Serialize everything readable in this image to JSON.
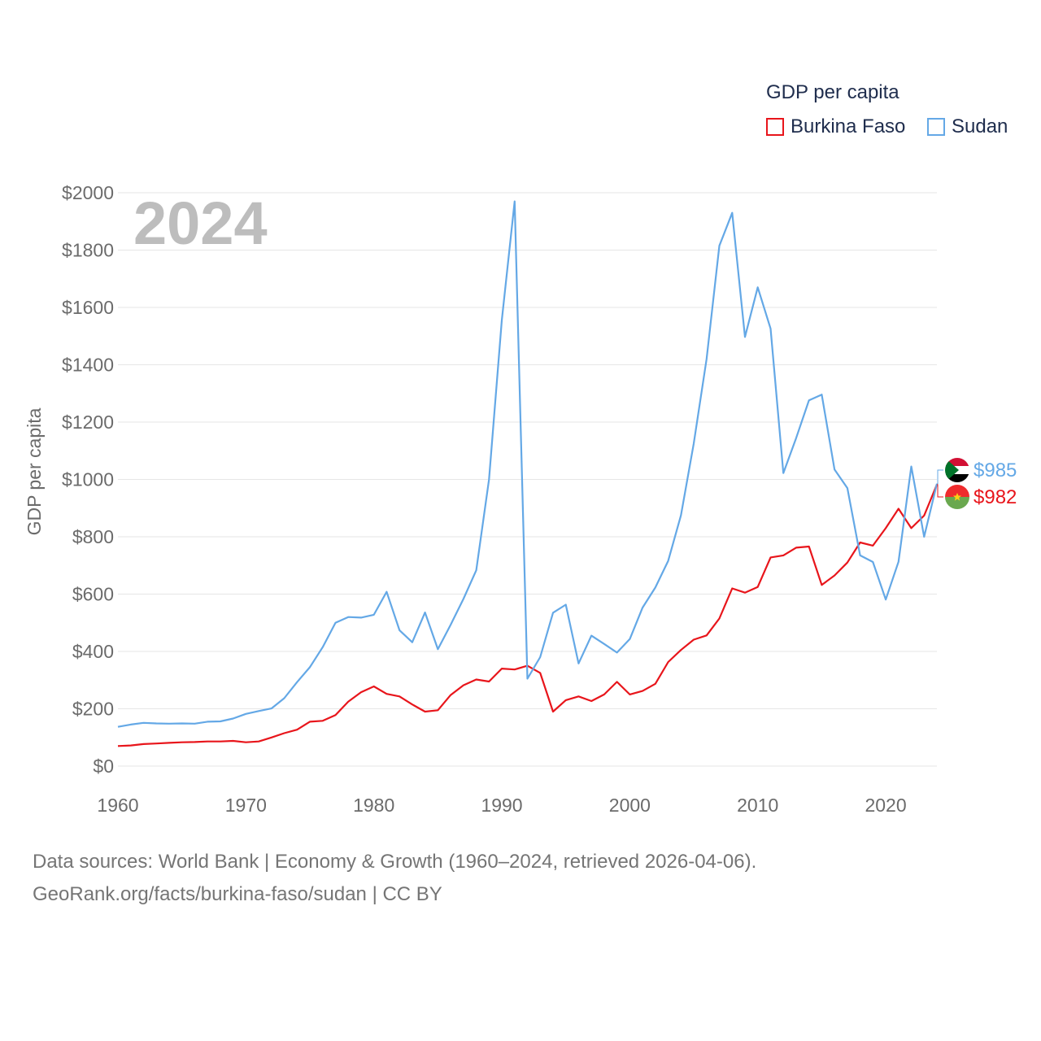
{
  "legend": {
    "title": "GDP per capita",
    "items": [
      {
        "label": "Burkina Faso",
        "color": "#e8151b"
      },
      {
        "label": "Sudan",
        "color": "#64a8e6"
      }
    ]
  },
  "year_label": "2024",
  "footer": {
    "line1": "Data sources: World Bank | Economy & Growth (1960–2024, retrieved 2026-04-06).",
    "line2": "GeoRank.org/facts/burkina-faso/sudan | CC BY"
  },
  "chart_data": {
    "type": "line",
    "title": "",
    "xlabel": "",
    "ylabel": "GDP per capita",
    "xlim": [
      1960,
      2024
    ],
    "ylim": [
      0,
      2000
    ],
    "x_ticks": [
      1960,
      1970,
      1980,
      1990,
      2000,
      2010,
      2020
    ],
    "y_ticks": [
      0,
      200,
      400,
      600,
      800,
      1000,
      1200,
      1400,
      1600,
      1800,
      2000
    ],
    "y_tick_labels": [
      "$0",
      "$200",
      "$400",
      "$600",
      "$800",
      "$1000",
      "$1200",
      "$1400",
      "$1600",
      "$1800",
      "$2000"
    ],
    "grid": true,
    "x": [
      1960,
      1961,
      1962,
      1963,
      1964,
      1965,
      1966,
      1967,
      1968,
      1969,
      1970,
      1971,
      1972,
      1973,
      1974,
      1975,
      1976,
      1977,
      1978,
      1979,
      1980,
      1981,
      1982,
      1983,
      1984,
      1985,
      1986,
      1987,
      1988,
      1989,
      1990,
      1991,
      1992,
      1993,
      1994,
      1995,
      1996,
      1997,
      1998,
      1999,
      2000,
      2001,
      2002,
      2003,
      2004,
      2005,
      2006,
      2007,
      2008,
      2009,
      2010,
      2011,
      2012,
      2013,
      2014,
      2015,
      2016,
      2017,
      2018,
      2019,
      2020,
      2021,
      2022,
      2023,
      2024
    ],
    "series": [
      {
        "name": "Burkina Faso",
        "color": "#e8151b",
        "end_label": "$982",
        "values": [
          70,
          72,
          77,
          79,
          81,
          83,
          84,
          86,
          86,
          88,
          83,
          86,
          100,
          115,
          127,
          155,
          158,
          178,
          225,
          258,
          278,
          252,
          243,
          215,
          190,
          195,
          248,
          282,
          302,
          295,
          340,
          337,
          350,
          325,
          190,
          230,
          243,
          227,
          250,
          294,
          250,
          262,
          287,
          363,
          405,
          441,
          456,
          515,
          620,
          605,
          625,
          728,
          735,
          762,
          766,
          632,
          665,
          710,
          780,
          769,
          830,
          898,
          830,
          874,
          982
        ]
      },
      {
        "name": "Sudan",
        "color": "#64a8e6",
        "end_label": "$985",
        "values": [
          137,
          145,
          151,
          149,
          148,
          149,
          148,
          155,
          156,
          166,
          182,
          192,
          201,
          237,
          293,
          345,
          415,
          500,
          520,
          518,
          528,
          608,
          474,
          432,
          536,
          408,
          493,
          583,
          683,
          1000,
          1555,
          1970,
          305,
          380,
          535,
          563,
          358,
          455,
          426,
          396,
          443,
          553,
          623,
          716,
          875,
          1125,
          1420,
          1815,
          1930,
          1497,
          1670,
          1526,
          1022,
          1144,
          1276,
          1296,
          1035,
          970,
          735,
          712,
          581,
          713,
          1045,
          800,
          985
        ]
      }
    ]
  }
}
